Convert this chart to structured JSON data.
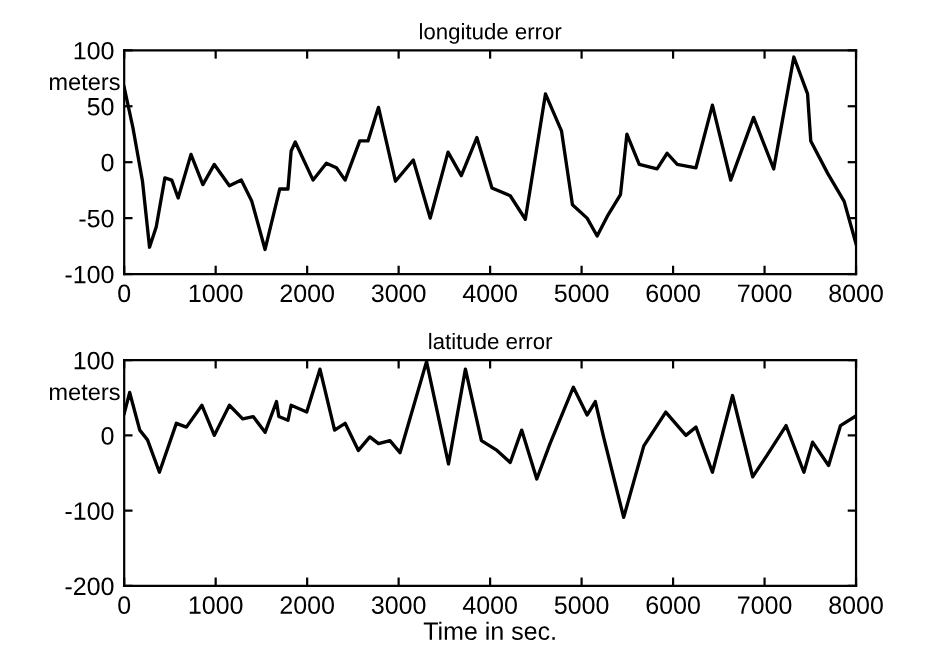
{
  "chart_data": [
    {
      "type": "line",
      "title": "longitude error",
      "ylabel": "meters",
      "xlim": [
        0,
        8000
      ],
      "ylim": [
        -100,
        100
      ],
      "xticks": [
        0,
        1000,
        2000,
        3000,
        4000,
        5000,
        6000,
        7000,
        8000
      ],
      "yticks": [
        -100,
        -50,
        0,
        50,
        100
      ],
      "grid": false,
      "legend": false,
      "series": [
        {
          "color": "#000000",
          "x": [
            0,
            95,
            200,
            277,
            350,
            445,
            520,
            590,
            730,
            860,
            985,
            1150,
            1280,
            1395,
            1540,
            1700,
            1790,
            1825,
            1870,
            2065,
            2210,
            2320,
            2415,
            2575,
            2665,
            2780,
            2965,
            3160,
            3345,
            3540,
            3685,
            3855,
            4020,
            4220,
            4385,
            4605,
            4780,
            4900,
            5060,
            5170,
            5290,
            5425,
            5495,
            5630,
            5825,
            5935,
            6045,
            6250,
            6430,
            6630,
            6880,
            7100,
            7320,
            7470,
            7505,
            7690,
            7870,
            8000
          ],
          "values": [
            67,
            31,
            -17,
            -76,
            -58,
            -14,
            -16,
            -32,
            7,
            -20,
            -2,
            -21,
            -16,
            -35,
            -78,
            -24,
            -24,
            10,
            18,
            -16,
            -1,
            -5,
            -16,
            19,
            19,
            49,
            -17,
            2,
            -50,
            9,
            -12,
            22,
            -23,
            -30,
            -51,
            61,
            28,
            -38,
            -50,
            -66,
            -47,
            -29,
            25,
            -2,
            -6,
            8,
            -2,
            -5,
            51,
            -16,
            40,
            -6,
            94,
            61,
            19,
            -10,
            -35,
            -73
          ]
        }
      ]
    },
    {
      "type": "line",
      "title": "latitude error",
      "ylabel": "meters",
      "xlabel": "Time in sec.",
      "xlim": [
        0,
        8000
      ],
      "ylim": [
        -200,
        100
      ],
      "xticks": [
        0,
        1000,
        2000,
        3000,
        4000,
        5000,
        6000,
        7000,
        8000
      ],
      "yticks": [
        -200,
        -100,
        0,
        100
      ],
      "grid": false,
      "legend": false,
      "series": [
        {
          "color": "#000000",
          "x": [
            0,
            60,
            170,
            255,
            385,
            570,
            680,
            850,
            985,
            1150,
            1295,
            1410,
            1540,
            1665,
            1690,
            1790,
            1825,
            1995,
            2140,
            2300,
            2415,
            2560,
            2685,
            2780,
            2905,
            3015,
            3305,
            3545,
            3730,
            3905,
            4075,
            4220,
            4345,
            4510,
            4655,
            4910,
            5060,
            5150,
            5240,
            5460,
            5680,
            5920,
            6140,
            6250,
            6430,
            6650,
            6870,
            7030,
            7235,
            7430,
            7525,
            7700,
            7830,
            8000
          ],
          "values": [
            29,
            57,
            7,
            -6,
            -49,
            16,
            11,
            40,
            0,
            40,
            22,
            25,
            4,
            45,
            25,
            20,
            40,
            31,
            88,
            7,
            16,
            -20,
            -2,
            -11,
            -7,
            -23,
            98,
            -38,
            88,
            -7,
            -20,
            -36,
            7,
            -58,
            -11,
            64,
            27,
            45,
            -2,
            -109,
            -14,
            31,
            0,
            11,
            -49,
            53,
            -55,
            -26,
            13,
            -49,
            -9,
            -40,
            13,
            26
          ]
        }
      ]
    }
  ]
}
